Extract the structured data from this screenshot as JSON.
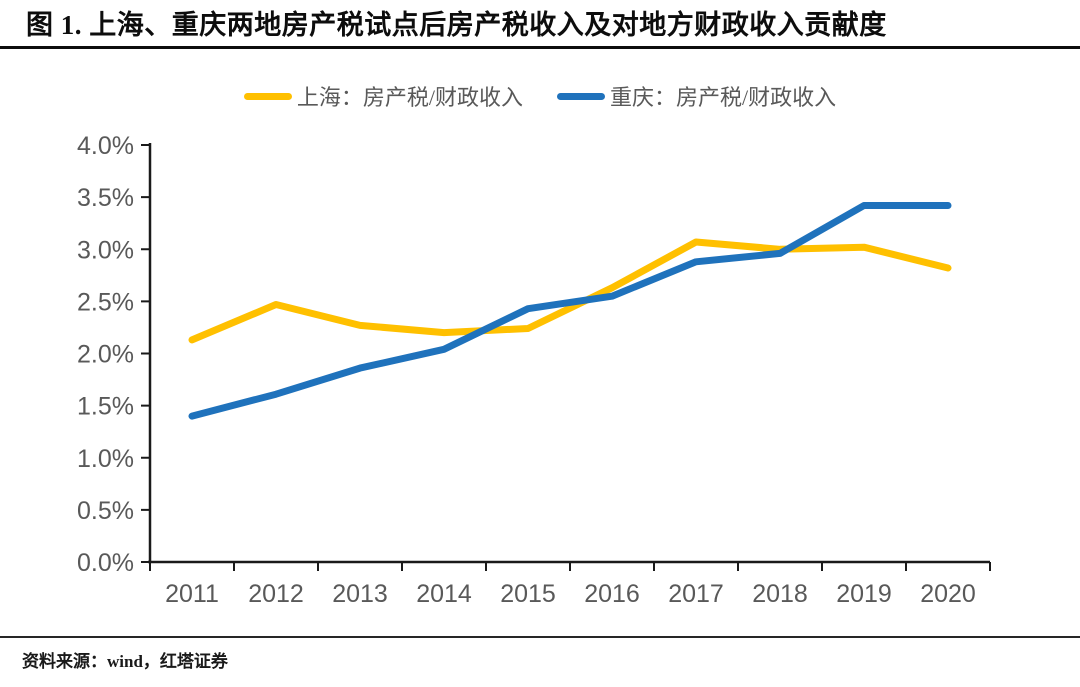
{
  "title": "图 1. 上海、重庆两地房产税试点后房产税收入及对地方财政收入贡献度",
  "source": "资料来源：wind，红塔证券",
  "colors": {
    "shanghai_line": "#FFC000",
    "chongqing_line": "#1F72BC",
    "axis": "#1a1a1a",
    "tick_text": "#595959"
  },
  "legend": [
    {
      "label": "上海：房产税/财政收入",
      "color": "#FFC000"
    },
    {
      "label": "重庆：房产税/财政收入",
      "color": "#1F72BC"
    }
  ],
  "chart_data": {
    "type": "line",
    "title": "图 1. 上海、重庆两地房产税试点后房产税收入及对地方财政收入贡献度",
    "categories": [
      "2011",
      "2012",
      "2013",
      "2014",
      "2015",
      "2016",
      "2017",
      "2018",
      "2019",
      "2020"
    ],
    "series": [
      {
        "name": "上海：房产税/财政收入",
        "color": "#FFC000",
        "values": [
          2.13,
          2.47,
          2.27,
          2.2,
          2.24,
          2.63,
          3.07,
          3.0,
          3.02,
          2.82
        ]
      },
      {
        "name": "重庆：房产税/财政收入",
        "color": "#1F72BC",
        "values": [
          1.4,
          1.61,
          1.86,
          2.04,
          2.43,
          2.55,
          2.88,
          2.96,
          3.42,
          3.42
        ]
      }
    ],
    "ylim": [
      0,
      4
    ],
    "y_tick_step": 0.5,
    "y_tick_labels": [
      "0.0%",
      "0.5%",
      "1.0%",
      "1.5%",
      "2.0%",
      "2.5%",
      "3.0%",
      "3.5%",
      "4.0%"
    ],
    "xlabel": "",
    "ylabel": "",
    "grid": false,
    "legend_position": "top"
  }
}
